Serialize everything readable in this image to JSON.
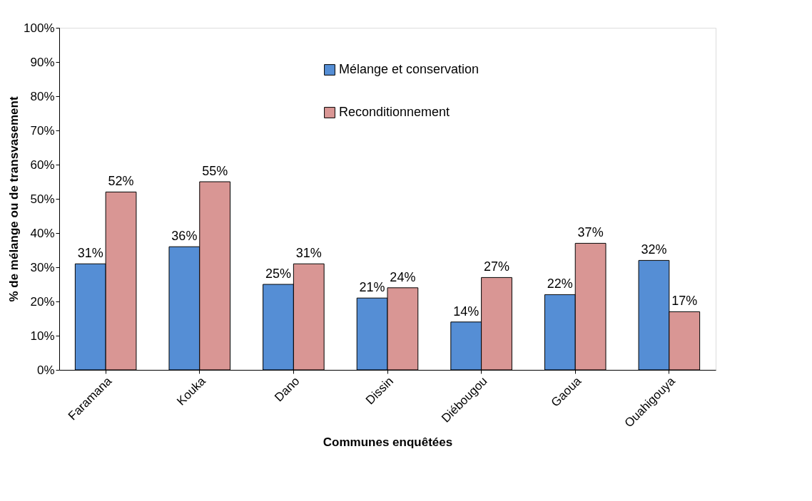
{
  "chart_data": {
    "type": "bar",
    "xlabel": "Communes enquêtées",
    "ylabel": "% de mélange ou de transvasement",
    "categories": [
      "Faramana",
      "Kouka",
      "Dano",
      "Dissin",
      "Diébougou",
      "Gaoua",
      "Ouahigouya"
    ],
    "series": [
      {
        "name": "Mélange et conservation",
        "color": "#558ed5",
        "values": [
          31,
          36,
          25,
          21,
          14,
          22,
          32
        ],
        "value_labels": [
          "31%",
          "36%",
          "25%",
          "21%",
          "14%",
          "22%",
          "32%"
        ]
      },
      {
        "name": "Reconditionnement",
        "color": "#d99694",
        "values": [
          52,
          55,
          31,
          24,
          27,
          37,
          17
        ],
        "value_labels": [
          "52%",
          "55%",
          "31%",
          "24%",
          "27%",
          "37%",
          "17%"
        ]
      }
    ],
    "ylim": [
      0,
      100
    ],
    "yticks": [
      {
        "value": 0,
        "label": "0%"
      },
      {
        "value": 10,
        "label": "10%"
      },
      {
        "value": 20,
        "label": "20%"
      },
      {
        "value": 30,
        "label": "30%"
      },
      {
        "value": 40,
        "label": "40%"
      },
      {
        "value": 50,
        "label": "50%"
      },
      {
        "value": 60,
        "label": "60%"
      },
      {
        "value": 70,
        "label": "70%"
      },
      {
        "value": 80,
        "label": "80%"
      },
      {
        "value": 90,
        "label": "90%"
      },
      {
        "value": 100,
        "label": "100%"
      }
    ],
    "grid": false,
    "legend": "top"
  }
}
